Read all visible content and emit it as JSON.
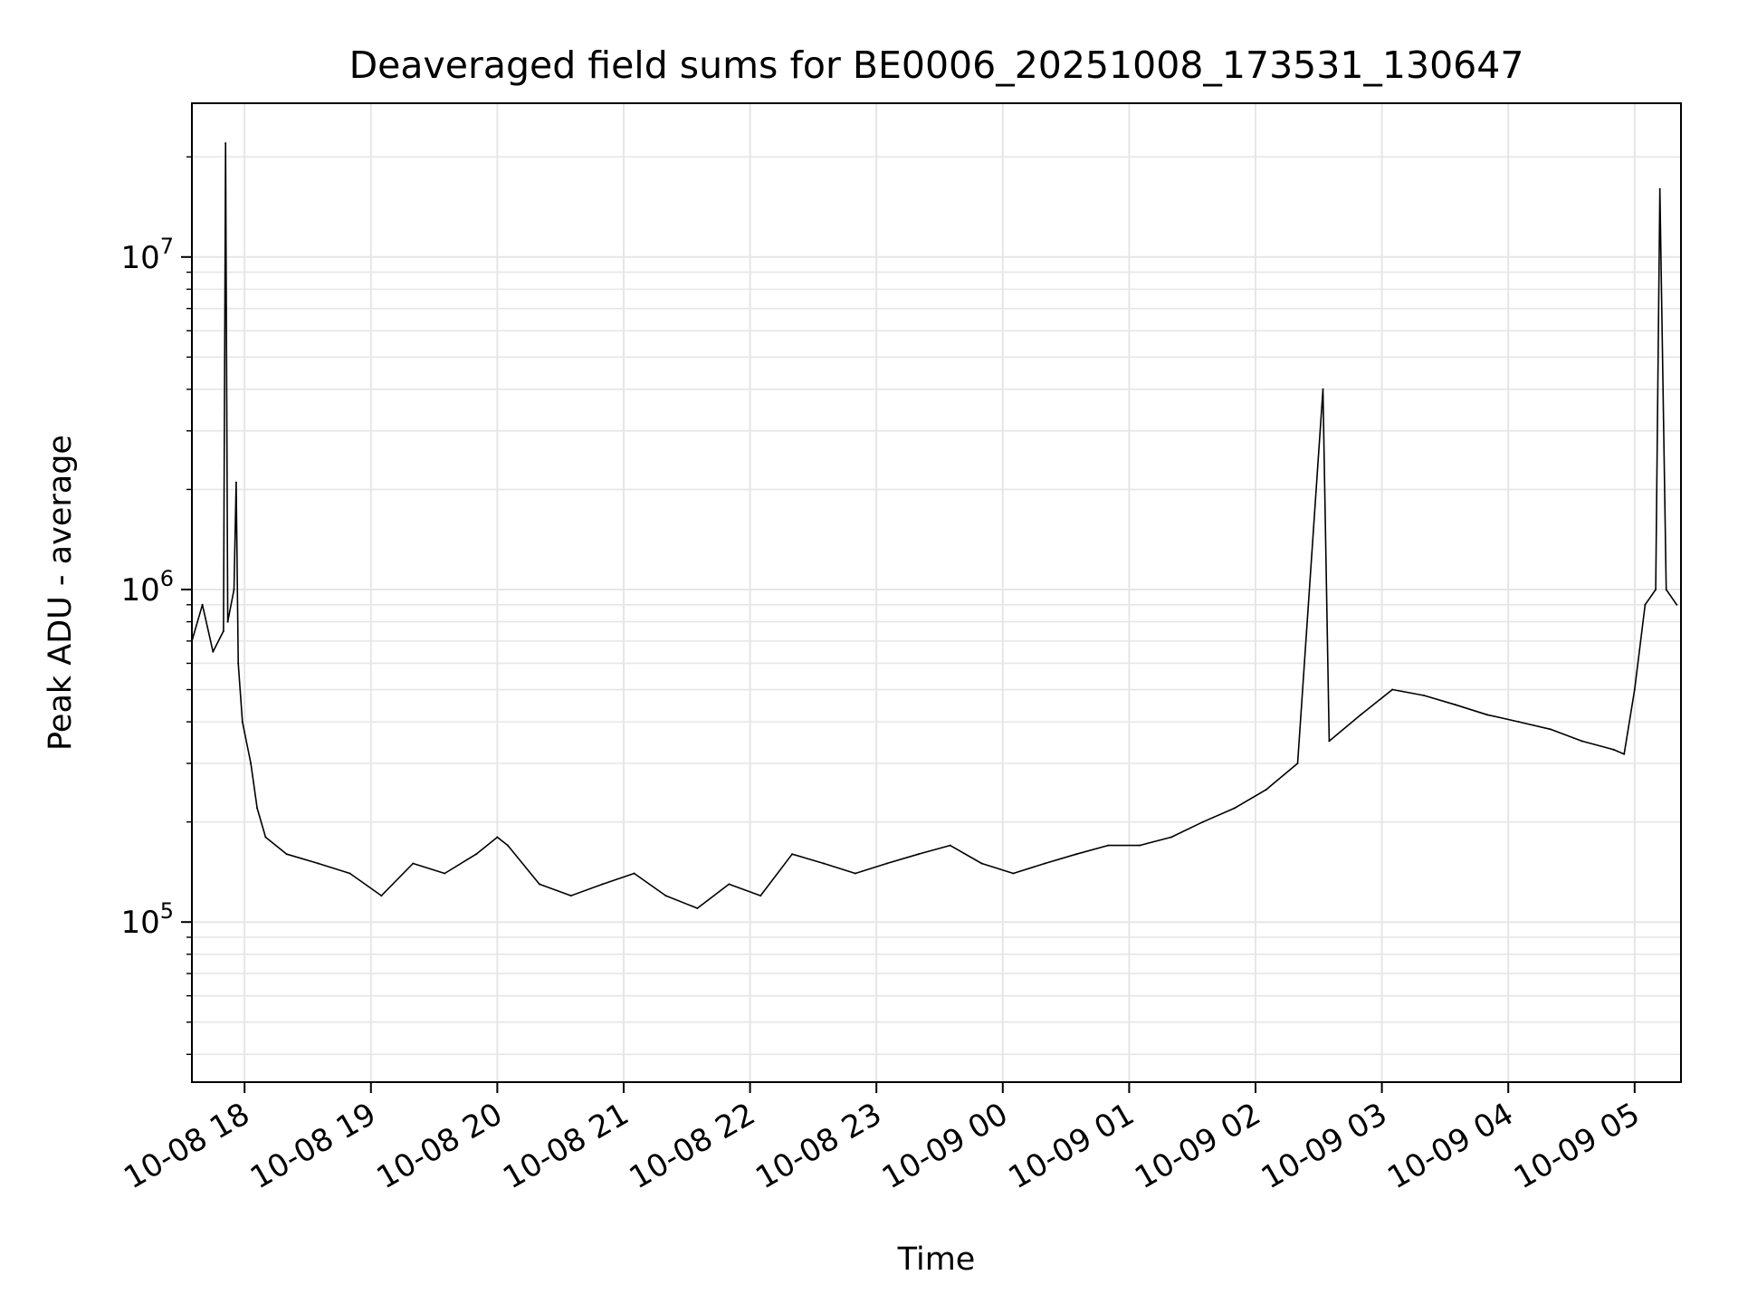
{
  "chart_data": {
    "type": "line",
    "title": "Deaveraged field sums for BE0006_20251008_173531_130647",
    "xlabel": "Time",
    "ylabel": "Peak ADU - average",
    "yscale": "log",
    "grid": true,
    "line_color": "#000000",
    "grid_color": "#e6e6e6",
    "xlim": [
      "2025-10-08 17:35",
      "2025-10-09 05:22"
    ],
    "ylim": [
      33000,
      29000000
    ],
    "x_ticks": [
      {
        "value": "2025-10-08 18:00",
        "label": "10-08 18"
      },
      {
        "value": "2025-10-08 19:00",
        "label": "10-08 19"
      },
      {
        "value": "2025-10-08 20:00",
        "label": "10-08 20"
      },
      {
        "value": "2025-10-08 21:00",
        "label": "10-08 21"
      },
      {
        "value": "2025-10-08 22:00",
        "label": "10-08 22"
      },
      {
        "value": "2025-10-08 23:00",
        "label": "10-08 23"
      },
      {
        "value": "2025-10-09 00:00",
        "label": "10-09 00"
      },
      {
        "value": "2025-10-09 01:00",
        "label": "10-09 01"
      },
      {
        "value": "2025-10-09 02:00",
        "label": "10-09 02"
      },
      {
        "value": "2025-10-09 03:00",
        "label": "10-09 03"
      },
      {
        "value": "2025-10-09 04:00",
        "label": "10-09 04"
      },
      {
        "value": "2025-10-09 05:00",
        "label": "10-09 05"
      }
    ],
    "y_ticks": [
      {
        "value": 100000,
        "base": "10",
        "exp": "5"
      },
      {
        "value": 1000000,
        "base": "10",
        "exp": "6"
      },
      {
        "value": 10000000,
        "base": "10",
        "exp": "7"
      }
    ],
    "series": [
      {
        "x": [
          "2025-10-08 17:35",
          "2025-10-08 17:40",
          "2025-10-08 17:45",
          "2025-10-08 17:50",
          "2025-10-08 17:51",
          "2025-10-08 17:52",
          "2025-10-08 17:55",
          "2025-10-08 17:56",
          "2025-10-08 17:57",
          "2025-10-08 17:59",
          "2025-10-08 18:03",
          "2025-10-08 18:06",
          "2025-10-08 18:10",
          "2025-10-08 18:20",
          "2025-10-08 18:35",
          "2025-10-08 18:50",
          "2025-10-08 19:05",
          "2025-10-08 19:20",
          "2025-10-08 19:35",
          "2025-10-08 19:50",
          "2025-10-08 20:00",
          "2025-10-08 20:05",
          "2025-10-08 20:20",
          "2025-10-08 20:35",
          "2025-10-08 20:50",
          "2025-10-08 21:05",
          "2025-10-08 21:20",
          "2025-10-08 21:35",
          "2025-10-08 21:50",
          "2025-10-08 22:05",
          "2025-10-08 22:20",
          "2025-10-08 22:35",
          "2025-10-08 22:50",
          "2025-10-08 23:05",
          "2025-10-08 23:20",
          "2025-10-08 23:35",
          "2025-10-08 23:50",
          "2025-10-09 00:05",
          "2025-10-09 00:20",
          "2025-10-09 00:35",
          "2025-10-09 00:50",
          "2025-10-09 01:05",
          "2025-10-09 01:20",
          "2025-10-09 01:35",
          "2025-10-09 01:50",
          "2025-10-09 02:05",
          "2025-10-09 02:20",
          "2025-10-09 02:32",
          "2025-10-09 02:35",
          "2025-10-09 02:50",
          "2025-10-09 03:05",
          "2025-10-09 03:20",
          "2025-10-09 03:35",
          "2025-10-09 03:50",
          "2025-10-09 04:05",
          "2025-10-09 04:20",
          "2025-10-09 04:35",
          "2025-10-09 04:50",
          "2025-10-09 04:55",
          "2025-10-09 05:00",
          "2025-10-09 05:05",
          "2025-10-09 05:10",
          "2025-10-09 05:12",
          "2025-10-09 05:15",
          "2025-10-09 05:20"
        ],
        "y": [
          700000,
          900000,
          650000,
          750000,
          22000000,
          800000,
          1000000,
          2100000,
          600000,
          400000,
          300000,
          220000,
          180000,
          160000,
          150000,
          140000,
          120000,
          150000,
          140000,
          160000,
          180000,
          170000,
          130000,
          120000,
          130000,
          140000,
          120000,
          110000,
          130000,
          120000,
          160000,
          150000,
          140000,
          150000,
          160000,
          170000,
          150000,
          140000,
          150000,
          160000,
          170000,
          170000,
          180000,
          200000,
          220000,
          250000,
          300000,
          4000000,
          350000,
          420000,
          500000,
          480000,
          450000,
          420000,
          400000,
          380000,
          350000,
          330000,
          320000,
          500000,
          900000,
          1000000,
          16000000,
          1000000,
          900000
        ]
      }
    ]
  }
}
